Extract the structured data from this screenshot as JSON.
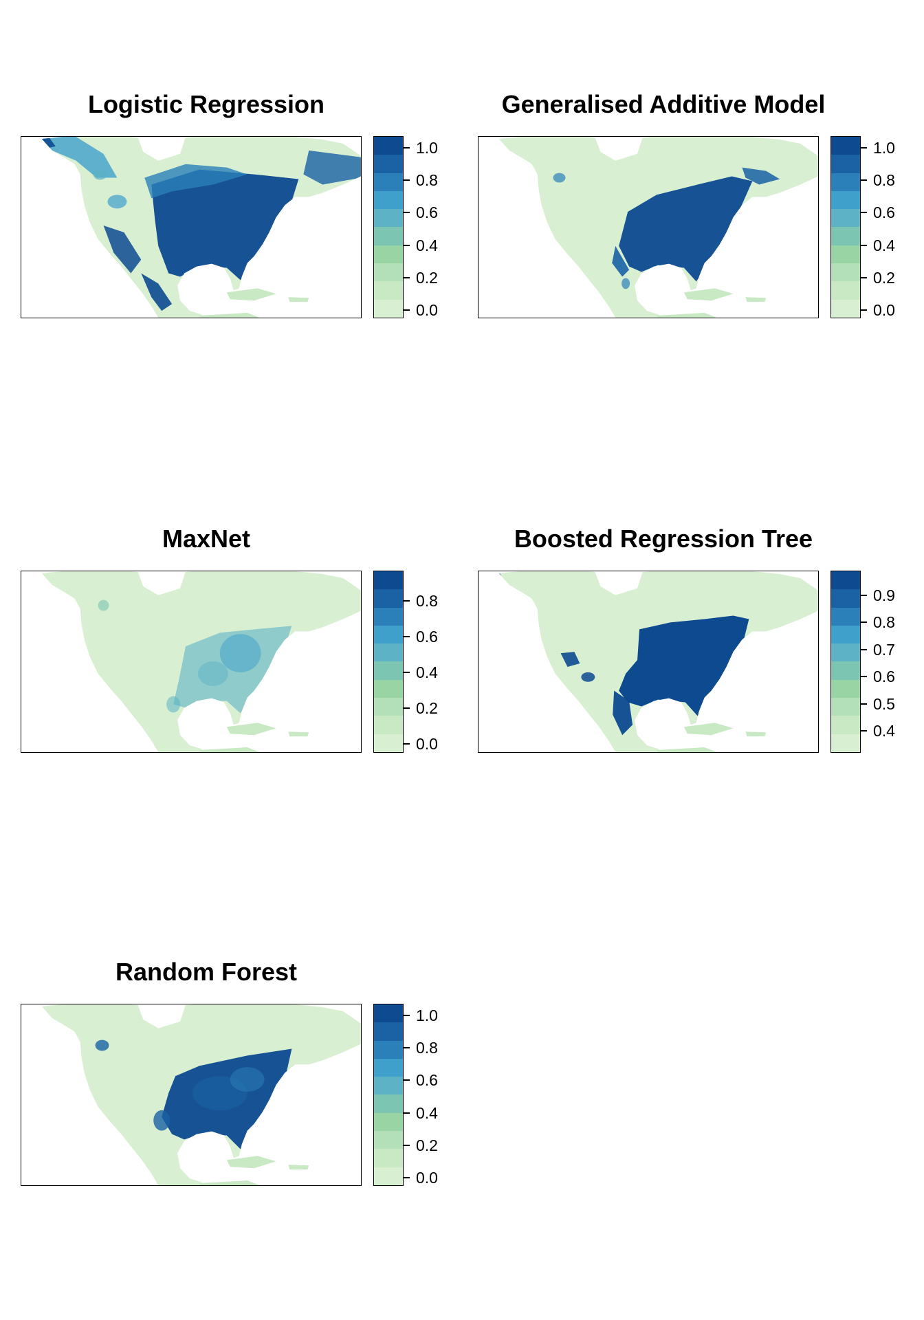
{
  "colors": {
    "water": "#ffffff",
    "frame": "#000000",
    "scale": [
      "#d8efd2",
      "#c9e9c5",
      "#b3e0b8",
      "#98d4a4",
      "#7cc5b2",
      "#5db2c5",
      "#40a0cc",
      "#2b80b9",
      "#1a62a4",
      "#0d4a90"
    ]
  },
  "panels": [
    {
      "title": "Logistic Regression",
      "legend": {
        "min": -0.05,
        "max": 1.07,
        "ticks": [
          "1.0",
          "0.8",
          "0.6",
          "0.4",
          "0.2",
          "0.0"
        ],
        "tick_values": [
          1.0,
          0.8,
          0.6,
          0.4,
          0.2,
          0.0
        ]
      },
      "pattern": "lr"
    },
    {
      "title": "Generalised Additive Model",
      "legend": {
        "min": -0.05,
        "max": 1.07,
        "ticks": [
          "1.0",
          "0.8",
          "0.6",
          "0.4",
          "0.2",
          "0.0"
        ],
        "tick_values": [
          1.0,
          0.8,
          0.6,
          0.4,
          0.2,
          0.0
        ]
      },
      "pattern": "gam"
    },
    {
      "title": "MaxNet",
      "legend": {
        "min": -0.05,
        "max": 0.97,
        "ticks": [
          "0.8",
          "0.6",
          "0.4",
          "0.2",
          "0.0"
        ],
        "tick_values": [
          0.8,
          0.6,
          0.4,
          0.2,
          0.0
        ]
      },
      "pattern": "maxnet"
    },
    {
      "title": "Boosted Regression Tree",
      "legend": {
        "min": 0.32,
        "max": 0.99,
        "ticks": [
          "0.9",
          "0.8",
          "0.7",
          "0.6",
          "0.5",
          "0.4"
        ],
        "tick_values": [
          0.9,
          0.8,
          0.7,
          0.6,
          0.5,
          0.4
        ]
      },
      "pattern": "brt"
    },
    {
      "title": "Random Forest",
      "legend": {
        "min": -0.05,
        "max": 1.07,
        "ticks": [
          "1.0",
          "0.8",
          "0.6",
          "0.4",
          "0.2",
          "0.0"
        ],
        "tick_values": [
          1.0,
          0.8,
          0.6,
          0.4,
          0.2,
          0.0
        ]
      },
      "pattern": "rf"
    }
  ]
}
